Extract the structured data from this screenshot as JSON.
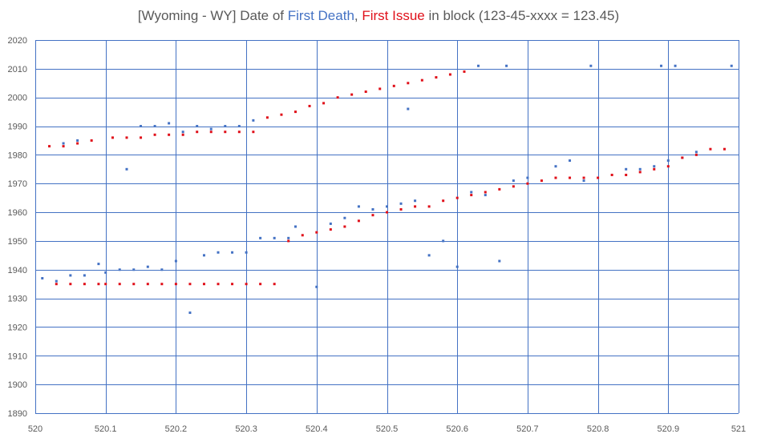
{
  "title": {
    "prefix": "[Wyoming - WY] Date of ",
    "series1": "First Death",
    "sep": ", ",
    "series2": "First Issue",
    "suffix": " in block (123-45-xxxx = 123.45)"
  },
  "colors": {
    "first_death": "#4472C4",
    "first_issue": "#E0101A",
    "grid": "#4472C4",
    "text": "#595959"
  },
  "chart_data": {
    "type": "scatter",
    "title": "[Wyoming - WY] Date of First Death, First Issue in block (123-45-xxxx = 123.45)",
    "xlim": [
      520,
      521
    ],
    "ylim": [
      1890,
      2020
    ],
    "x_ticks": [
      520,
      520.1,
      520.2,
      520.3,
      520.4,
      520.5,
      520.6,
      520.7,
      520.8,
      520.9,
      521
    ],
    "y_ticks": [
      1890,
      1900,
      1910,
      1920,
      1930,
      1940,
      1950,
      1960,
      1970,
      1980,
      1990,
      2000,
      2010,
      2020
    ],
    "x_tick_labels": [
      "520",
      "520.1",
      "520.2",
      "520.3",
      "520.4",
      "520.5",
      "520.6",
      "520.7",
      "520.8",
      "520.9",
      "521"
    ],
    "y_tick_labels": [
      "1890",
      "1900",
      "1910",
      "1920",
      "1930",
      "1940",
      "1950",
      "1960",
      "1970",
      "1980",
      "1990",
      "2000",
      "2010",
      "2020"
    ],
    "grid": true,
    "series": [
      {
        "name": "First Death",
        "points": [
          [
            520.01,
            1937
          ],
          [
            520.03,
            1936
          ],
          [
            520.04,
            1984
          ],
          [
            520.05,
            1938
          ],
          [
            520.06,
            1985
          ],
          [
            520.07,
            1938
          ],
          [
            520.09,
            1942
          ],
          [
            520.1,
            1939
          ],
          [
            520.12,
            1940
          ],
          [
            520.13,
            1975
          ],
          [
            520.14,
            1940
          ],
          [
            520.15,
            1990
          ],
          [
            520.16,
            1941
          ],
          [
            520.17,
            1990
          ],
          [
            520.18,
            1940
          ],
          [
            520.19,
            1991
          ],
          [
            520.2,
            1943
          ],
          [
            520.21,
            1988
          ],
          [
            520.22,
            1925
          ],
          [
            520.23,
            1990
          ],
          [
            520.24,
            1945
          ],
          [
            520.25,
            1989
          ],
          [
            520.26,
            1946
          ],
          [
            520.27,
            1990
          ],
          [
            520.28,
            1946
          ],
          [
            520.29,
            1990
          ],
          [
            520.3,
            1946
          ],
          [
            520.31,
            1992
          ],
          [
            520.32,
            1951
          ],
          [
            520.34,
            1951
          ],
          [
            520.36,
            1951
          ],
          [
            520.37,
            1955
          ],
          [
            520.4,
            1934
          ],
          [
            520.42,
            1956
          ],
          [
            520.44,
            1958
          ],
          [
            520.46,
            1962
          ],
          [
            520.48,
            1961
          ],
          [
            520.5,
            1962
          ],
          [
            520.52,
            1963
          ],
          [
            520.53,
            1996
          ],
          [
            520.54,
            1964
          ],
          [
            520.56,
            1945
          ],
          [
            520.58,
            1950
          ],
          [
            520.6,
            1941
          ],
          [
            520.62,
            1967
          ],
          [
            520.63,
            2011
          ],
          [
            520.64,
            1966
          ],
          [
            520.66,
            1943
          ],
          [
            520.67,
            2011
          ],
          [
            520.68,
            1971
          ],
          [
            520.7,
            1972
          ],
          [
            520.74,
            1976
          ],
          [
            520.76,
            1978
          ],
          [
            520.78,
            1971
          ],
          [
            520.79,
            2011
          ],
          [
            520.84,
            1975
          ],
          [
            520.86,
            1975
          ],
          [
            520.88,
            1976
          ],
          [
            520.89,
            2011
          ],
          [
            520.9,
            1978
          ],
          [
            520.91,
            2011
          ],
          [
            520.92,
            1979
          ],
          [
            520.94,
            1981
          ],
          [
            520.99,
            2011
          ]
        ]
      },
      {
        "name": "First Issue",
        "points": [
          [
            520.02,
            1983
          ],
          [
            520.03,
            1935
          ],
          [
            520.04,
            1983
          ],
          [
            520.05,
            1935
          ],
          [
            520.06,
            1984
          ],
          [
            520.07,
            1935
          ],
          [
            520.08,
            1985
          ],
          [
            520.09,
            1935
          ],
          [
            520.1,
            1935
          ],
          [
            520.11,
            1986
          ],
          [
            520.12,
            1935
          ],
          [
            520.13,
            1986
          ],
          [
            520.14,
            1935
          ],
          [
            520.15,
            1986
          ],
          [
            520.16,
            1935
          ],
          [
            520.17,
            1987
          ],
          [
            520.18,
            1935
          ],
          [
            520.19,
            1987
          ],
          [
            520.2,
            1935
          ],
          [
            520.21,
            1987
          ],
          [
            520.22,
            1935
          ],
          [
            520.23,
            1988
          ],
          [
            520.24,
            1935
          ],
          [
            520.25,
            1988
          ],
          [
            520.26,
            1935
          ],
          [
            520.27,
            1988
          ],
          [
            520.28,
            1935
          ],
          [
            520.29,
            1988
          ],
          [
            520.3,
            1935
          ],
          [
            520.31,
            1988
          ],
          [
            520.32,
            1935
          ],
          [
            520.33,
            1993
          ],
          [
            520.34,
            1935
          ],
          [
            520.35,
            1994
          ],
          [
            520.36,
            1950
          ],
          [
            520.37,
            1995
          ],
          [
            520.38,
            1952
          ],
          [
            520.39,
            1997
          ],
          [
            520.4,
            1953
          ],
          [
            520.41,
            1998
          ],
          [
            520.42,
            1954
          ],
          [
            520.43,
            2000
          ],
          [
            520.44,
            1955
          ],
          [
            520.45,
            2001
          ],
          [
            520.46,
            1957
          ],
          [
            520.47,
            2002
          ],
          [
            520.48,
            1959
          ],
          [
            520.49,
            2003
          ],
          [
            520.5,
            1960
          ],
          [
            520.51,
            2004
          ],
          [
            520.52,
            1961
          ],
          [
            520.53,
            2005
          ],
          [
            520.54,
            1962
          ],
          [
            520.55,
            2006
          ],
          [
            520.56,
            1962
          ],
          [
            520.57,
            2007
          ],
          [
            520.58,
            1964
          ],
          [
            520.59,
            2008
          ],
          [
            520.6,
            1965
          ],
          [
            520.61,
            2009
          ],
          [
            520.62,
            1966
          ],
          [
            520.64,
            1967
          ],
          [
            520.66,
            1968
          ],
          [
            520.68,
            1969
          ],
          [
            520.7,
            1970
          ],
          [
            520.72,
            1971
          ],
          [
            520.74,
            1972
          ],
          [
            520.76,
            1972
          ],
          [
            520.78,
            1972
          ],
          [
            520.8,
            1972
          ],
          [
            520.82,
            1973
          ],
          [
            520.84,
            1973
          ],
          [
            520.86,
            1974
          ],
          [
            520.88,
            1975
          ],
          [
            520.9,
            1976
          ],
          [
            520.92,
            1979
          ],
          [
            520.94,
            1980
          ],
          [
            520.96,
            1982
          ],
          [
            520.98,
            1982
          ]
        ]
      }
    ]
  }
}
